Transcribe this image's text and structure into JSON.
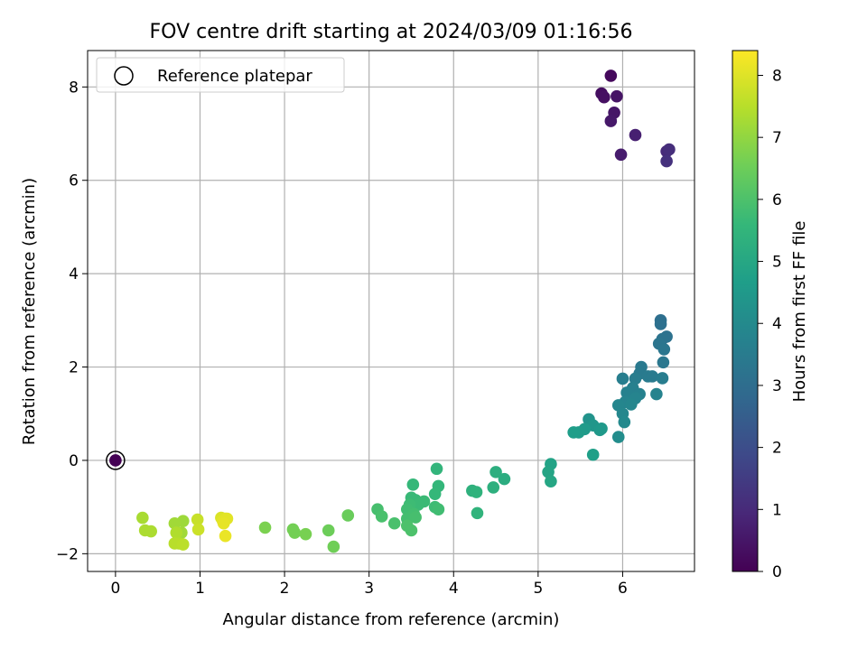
{
  "chart_data": {
    "type": "scatter",
    "title": "FOV centre drift starting at 2024/03/09 01:16:56",
    "xlabel": "Angular distance from reference (arcmin)",
    "ylabel": "Rotation from reference (arcmin)",
    "xlim": [
      -0.33,
      6.85
    ],
    "ylim": [
      -2.38,
      8.78
    ],
    "xticks": [
      0,
      1,
      2,
      3,
      4,
      5,
      6
    ],
    "yticks": [
      -2,
      0,
      2,
      4,
      6,
      8
    ],
    "grid": true,
    "colormap": "viridis",
    "colorbar": {
      "label": "Hours from first FF file",
      "min": 0,
      "max": 8.4,
      "ticks": [
        0,
        1,
        2,
        3,
        4,
        5,
        6,
        7,
        8
      ]
    },
    "legend": {
      "position": "top-left",
      "entries": [
        "Reference platepar"
      ]
    },
    "reference_point": {
      "x": 0,
      "y": 0
    },
    "points": [
      {
        "x": 5.86,
        "y": 8.24,
        "h": 0.2
      },
      {
        "x": 5.75,
        "y": 7.86,
        "h": 0.3
      },
      {
        "x": 5.78,
        "y": 7.78,
        "h": 0.35
      },
      {
        "x": 5.93,
        "y": 7.8,
        "h": 0.45
      },
      {
        "x": 5.9,
        "y": 7.45,
        "h": 0.5
      },
      {
        "x": 5.86,
        "y": 7.27,
        "h": 0.55
      },
      {
        "x": 5.98,
        "y": 6.55,
        "h": 0.65
      },
      {
        "x": 6.15,
        "y": 6.97,
        "h": 0.75
      },
      {
        "x": 6.52,
        "y": 6.62,
        "h": 1.0
      },
      {
        "x": 6.55,
        "y": 6.66,
        "h": 1.1
      },
      {
        "x": 6.52,
        "y": 6.41,
        "h": 1.2
      },
      {
        "x": 6.45,
        "y": 3.0,
        "h": 3.05
      },
      {
        "x": 6.45,
        "y": 2.92,
        "h": 3.1
      },
      {
        "x": 6.52,
        "y": 2.65,
        "h": 3.15
      },
      {
        "x": 6.47,
        "y": 2.6,
        "h": 3.2
      },
      {
        "x": 6.43,
        "y": 2.5,
        "h": 3.25
      },
      {
        "x": 6.49,
        "y": 2.38,
        "h": 3.3
      },
      {
        "x": 6.48,
        "y": 2.1,
        "h": 3.35
      },
      {
        "x": 6.22,
        "y": 2.0,
        "h": 3.4
      },
      {
        "x": 6.2,
        "y": 1.86,
        "h": 3.45
      },
      {
        "x": 6.3,
        "y": 1.8,
        "h": 3.5
      },
      {
        "x": 6.15,
        "y": 1.75,
        "h": 3.55
      },
      {
        "x": 6.35,
        "y": 1.8,
        "h": 3.5
      },
      {
        "x": 6.47,
        "y": 1.76,
        "h": 3.55
      },
      {
        "x": 6.0,
        "y": 1.75,
        "h": 3.6
      },
      {
        "x": 6.12,
        "y": 1.55,
        "h": 3.65
      },
      {
        "x": 6.05,
        "y": 1.45,
        "h": 3.7
      },
      {
        "x": 6.2,
        "y": 1.42,
        "h": 3.7
      },
      {
        "x": 6.4,
        "y": 1.42,
        "h": 3.75
      },
      {
        "x": 6.15,
        "y": 1.33,
        "h": 3.8
      },
      {
        "x": 6.03,
        "y": 1.25,
        "h": 3.8
      },
      {
        "x": 5.95,
        "y": 1.18,
        "h": 3.85
      },
      {
        "x": 6.1,
        "y": 1.2,
        "h": 3.85
      },
      {
        "x": 6.0,
        "y": 1.0,
        "h": 3.9
      },
      {
        "x": 6.02,
        "y": 0.82,
        "h": 3.95
      },
      {
        "x": 5.95,
        "y": 0.5,
        "h": 4.1
      },
      {
        "x": 5.6,
        "y": 0.88,
        "h": 4.3
      },
      {
        "x": 5.65,
        "y": 0.75,
        "h": 4.4
      },
      {
        "x": 5.73,
        "y": 0.65,
        "h": 4.45
      },
      {
        "x": 5.75,
        "y": 0.68,
        "h": 4.5
      },
      {
        "x": 5.55,
        "y": 0.67,
        "h": 4.55
      },
      {
        "x": 5.48,
        "y": 0.6,
        "h": 4.6
      },
      {
        "x": 5.42,
        "y": 0.6,
        "h": 4.65
      },
      {
        "x": 5.65,
        "y": 0.12,
        "h": 4.7
      },
      {
        "x": 5.15,
        "y": -0.08,
        "h": 4.85
      },
      {
        "x": 5.12,
        "y": -0.25,
        "h": 4.9
      },
      {
        "x": 5.15,
        "y": -0.45,
        "h": 4.95
      },
      {
        "x": 4.6,
        "y": -0.4,
        "h": 5.2
      },
      {
        "x": 4.5,
        "y": -0.25,
        "h": 5.25
      },
      {
        "x": 4.47,
        "y": -0.58,
        "h": 5.3
      },
      {
        "x": 4.22,
        "y": -0.65,
        "h": 5.35
      },
      {
        "x": 4.27,
        "y": -0.68,
        "h": 5.4
      },
      {
        "x": 4.28,
        "y": -1.13,
        "h": 5.45
      },
      {
        "x": 3.8,
        "y": -0.18,
        "h": 5.5
      },
      {
        "x": 3.82,
        "y": -0.55,
        "h": 5.55
      },
      {
        "x": 3.78,
        "y": -0.72,
        "h": 5.6
      },
      {
        "x": 3.52,
        "y": -0.52,
        "h": 5.6
      },
      {
        "x": 3.5,
        "y": -0.8,
        "h": 5.65
      },
      {
        "x": 3.55,
        "y": -0.85,
        "h": 5.65
      },
      {
        "x": 3.65,
        "y": -0.88,
        "h": 5.7
      },
      {
        "x": 3.58,
        "y": -0.95,
        "h": 5.7
      },
      {
        "x": 3.48,
        "y": -0.95,
        "h": 5.75
      },
      {
        "x": 3.78,
        "y": -1.0,
        "h": 5.75
      },
      {
        "x": 3.82,
        "y": -1.05,
        "h": 5.8
      },
      {
        "x": 3.45,
        "y": -1.05,
        "h": 5.8
      },
      {
        "x": 3.53,
        "y": -1.15,
        "h": 5.85
      },
      {
        "x": 3.45,
        "y": -1.25,
        "h": 5.85
      },
      {
        "x": 3.55,
        "y": -1.22,
        "h": 5.9
      },
      {
        "x": 3.1,
        "y": -1.05,
        "h": 5.9
      },
      {
        "x": 3.15,
        "y": -1.2,
        "h": 5.95
      },
      {
        "x": 3.3,
        "y": -1.35,
        "h": 5.95
      },
      {
        "x": 3.45,
        "y": -1.4,
        "h": 6.0
      },
      {
        "x": 3.5,
        "y": -1.5,
        "h": 6.0
      },
      {
        "x": 2.75,
        "y": -1.18,
        "h": 6.45
      },
      {
        "x": 2.52,
        "y": -1.5,
        "h": 6.5
      },
      {
        "x": 2.58,
        "y": -1.85,
        "h": 6.55
      },
      {
        "x": 2.1,
        "y": -1.48,
        "h": 6.6
      },
      {
        "x": 2.12,
        "y": -1.55,
        "h": 6.6
      },
      {
        "x": 2.25,
        "y": -1.58,
        "h": 6.65
      },
      {
        "x": 1.77,
        "y": -1.44,
        "h": 6.7
      },
      {
        "x": 0.8,
        "y": -1.3,
        "h": 7.15
      },
      {
        "x": 0.78,
        "y": -1.55,
        "h": 7.2
      },
      {
        "x": 0.7,
        "y": -1.35,
        "h": 7.2
      },
      {
        "x": 0.32,
        "y": -1.23,
        "h": 7.3
      },
      {
        "x": 0.35,
        "y": -1.5,
        "h": 7.35
      },
      {
        "x": 0.42,
        "y": -1.52,
        "h": 7.35
      },
      {
        "x": 0.72,
        "y": -1.55,
        "h": 7.4
      },
      {
        "x": 0.75,
        "y": -1.78,
        "h": 7.45
      },
      {
        "x": 0.7,
        "y": -1.78,
        "h": 7.5
      },
      {
        "x": 0.8,
        "y": -1.8,
        "h": 7.55
      },
      {
        "x": 0.97,
        "y": -1.27,
        "h": 7.7
      },
      {
        "x": 0.98,
        "y": -1.48,
        "h": 7.75
      },
      {
        "x": 1.25,
        "y": -1.23,
        "h": 7.95
      },
      {
        "x": 1.3,
        "y": -1.25,
        "h": 8.0
      },
      {
        "x": 1.27,
        "y": -1.3,
        "h": 8.05
      },
      {
        "x": 1.32,
        "y": -1.25,
        "h": 8.05
      },
      {
        "x": 1.28,
        "y": -1.35,
        "h": 8.1
      },
      {
        "x": 1.3,
        "y": -1.62,
        "h": 8.15
      }
    ],
    "colors": {
      "grid": "#b0b0b0",
      "viridis": [
        "#440154",
        "#482878",
        "#3e4989",
        "#31688e",
        "#26828e",
        "#1f9e89",
        "#35b779",
        "#6ece58",
        "#b5de2b",
        "#fde725"
      ]
    }
  }
}
